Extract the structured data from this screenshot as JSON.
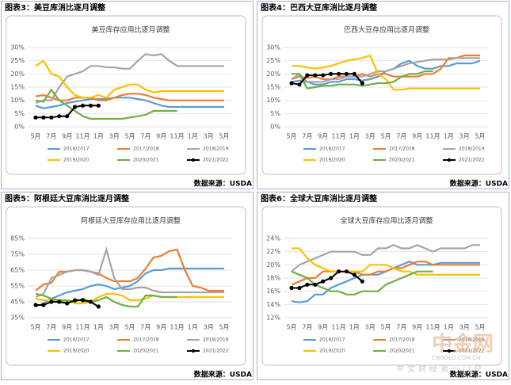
{
  "chart_data": [
    {
      "type": "line",
      "caption": "图表3：美豆库消比逐月调整",
      "title": "美豆库存应用比逐月调整",
      "source": "数据来源：USDA",
      "categories": [
        "5月",
        null,
        "7月",
        null,
        "9月",
        null,
        "11月",
        null,
        "1月",
        null,
        "3月",
        null,
        "5月",
        null,
        "7月",
        null,
        "9月",
        null,
        "11月",
        null,
        "1月",
        null,
        "3月",
        null,
        "5月"
      ],
      "ylim": [
        0,
        30
      ],
      "yticks": [
        {
          "value": 0,
          "label": "0%"
        },
        {
          "value": 5,
          "label": "5%"
        },
        {
          "value": 10,
          "label": "10%"
        },
        {
          "value": 15,
          "label": "15%"
        },
        {
          "value": 20,
          "label": "20%"
        },
        {
          "value": 25,
          "label": "25%"
        },
        {
          "value": 30,
          "label": "30%"
        }
      ],
      "grid": true,
      "series": [
        {
          "name": "2016/2017",
          "color": "#5b9bd5",
          "values": [
            8,
            7,
            7.5,
            8,
            9,
            9.5,
            10,
            10.5,
            10.5,
            10.5,
            11,
            11,
            11,
            10.5,
            10,
            9,
            8,
            7.5,
            7.5,
            7.5,
            7.5,
            7.5,
            7.5,
            7.5,
            7.5
          ]
        },
        {
          "name": "2017/2018",
          "color": "#ed7d31",
          "values": [
            11.5,
            12,
            11,
            10,
            10,
            11,
            11,
            11,
            10,
            10,
            11,
            12,
            12.5,
            12.5,
            12,
            11,
            10.5,
            10,
            10,
            10,
            10,
            10,
            10,
            10,
            10
          ]
        },
        {
          "name": "2018/2019",
          "color": "#a5a5a5",
          "values": [
            9,
            10,
            10,
            15,
            19,
            20,
            21,
            23,
            23,
            22.5,
            22.5,
            22,
            22,
            25,
            27.5,
            27,
            27.5,
            25,
            23,
            23,
            23,
            23,
            23,
            23,
            23
          ]
        },
        {
          "name": "2019/2020",
          "color": "#ffc000",
          "values": [
            23,
            25,
            20,
            19,
            15,
            12,
            11,
            11,
            12,
            11,
            14,
            15,
            16,
            16,
            14,
            13,
            13.5,
            13.5,
            13.5,
            13.5,
            13.5,
            13.5,
            13.5,
            13.5,
            13.5
          ]
        },
        {
          "name": "2020/2021",
          "color": "#70ad47",
          "values": [
            10,
            9.5,
            14,
            10,
            8,
            6,
            4,
            3,
            3,
            3,
            3,
            3,
            3.5,
            4,
            4.5,
            6,
            6,
            6,
            6,
            null,
            null,
            null,
            null,
            null,
            null
          ]
        },
        {
          "name": "2021/2022",
          "color": "#000000",
          "marker": true,
          "values": [
            3.5,
            3.5,
            3.5,
            4,
            4,
            7.5,
            8,
            8,
            8,
            null,
            null,
            null,
            null,
            null,
            null,
            null,
            null,
            null,
            null,
            null,
            null,
            null,
            null,
            null,
            null
          ]
        }
      ]
    },
    {
      "type": "line",
      "caption": "图表4：巴西大豆库消比逐月调整",
      "title": "巴西大豆存应用比逐月调整",
      "source": "数据来源：USDA",
      "categories": [
        "5月",
        null,
        "7月",
        null,
        "9月",
        null,
        "11月",
        null,
        "1月",
        null,
        "3月",
        null,
        "5月",
        null,
        "7月",
        null,
        "9月",
        null,
        "11月",
        null,
        "1月",
        null,
        "3月",
        null,
        "5月"
      ],
      "ylim": [
        0,
        30
      ],
      "yticks": [
        {
          "value": 0,
          "label": "0%"
        },
        {
          "value": 5,
          "label": "5%"
        },
        {
          "value": 10,
          "label": "10%"
        },
        {
          "value": 15,
          "label": "15%"
        },
        {
          "value": 20,
          "label": "20%"
        },
        {
          "value": 25,
          "label": "25%"
        },
        {
          "value": 30,
          "label": "30%"
        }
      ],
      "grid": true,
      "series": [
        {
          "name": "2016/2017",
          "color": "#5b9bd5",
          "values": [
            17,
            17.5,
            17,
            16,
            16,
            17,
            17,
            18,
            18,
            17.5,
            18,
            19,
            21,
            22,
            24,
            25,
            23,
            22,
            22,
            23,
            23,
            24,
            24,
            24,
            25
          ]
        },
        {
          "name": "2017/2018",
          "color": "#ed7d31",
          "values": [
            18,
            19,
            18.5,
            19,
            18,
            18,
            19,
            19,
            19,
            20,
            19,
            20,
            20,
            19,
            19,
            19,
            19,
            20,
            20,
            22,
            26,
            26,
            27,
            27,
            27
          ]
        },
        {
          "name": "2018/2019",
          "color": "#a5a5a5",
          "values": [
            18,
            20,
            17,
            17,
            17,
            18,
            18,
            19,
            19,
            19,
            20,
            21,
            21,
            22,
            23,
            24,
            24.5,
            25,
            25.5,
            25.5,
            25.5,
            26,
            26,
            26,
            26
          ]
        },
        {
          "name": "2019/2020",
          "color": "#ffc000",
          "values": [
            23,
            23,
            22.5,
            22,
            22.5,
            23,
            24,
            25,
            25.5,
            26,
            27,
            20,
            18,
            14,
            14,
            14.5,
            14.5,
            14.5,
            14.5,
            14.5,
            14.5,
            14.5,
            14.5,
            14.5,
            14.5
          ]
        },
        {
          "name": "2020/2021",
          "color": "#70ad47",
          "values": [
            20,
            20,
            14.5,
            15,
            15.5,
            15.5,
            16,
            16,
            16,
            15.5,
            16,
            16.5,
            16.5,
            17,
            19,
            20,
            20,
            21,
            21,
            null,
            null,
            null,
            null,
            null,
            null
          ]
        },
        {
          "name": "2021/2022",
          "color": "#000000",
          "marker": true,
          "values": [
            16.5,
            16,
            19.5,
            19.5,
            19.5,
            20,
            20,
            20,
            20,
            16.5,
            null,
            null,
            null,
            null,
            null,
            null,
            null,
            null,
            null,
            null,
            null,
            null,
            null,
            null,
            null
          ]
        }
      ]
    },
    {
      "type": "line",
      "caption": "图表5：阿根廷大豆库消比逐月调整",
      "title": "阿根廷大豆库存应用比逐月调整",
      "source": "数据来源：USDA",
      "categories": [
        "5月",
        null,
        "7月",
        null,
        "9月",
        null,
        "11月",
        null,
        "1月",
        null,
        "3月",
        null,
        "5月",
        null,
        "7月",
        null,
        "9月",
        null,
        "11月",
        null,
        "1月",
        null,
        "3月",
        null,
        "5月"
      ],
      "ylim": [
        35,
        85
      ],
      "yticks": [
        {
          "value": 35,
          "label": "35%"
        },
        {
          "value": 45,
          "label": "45%"
        },
        {
          "value": 55,
          "label": "55%"
        },
        {
          "value": 65,
          "label": "65%"
        },
        {
          "value": 75,
          "label": "75%"
        },
        {
          "value": 85,
          "label": "85%"
        }
      ],
      "grid": true,
      "series": [
        {
          "name": "2016/2017",
          "color": "#5b9bd5",
          "values": [
            42,
            44,
            47,
            49,
            51,
            52,
            53,
            55,
            56,
            55,
            53,
            54,
            55,
            58,
            63,
            65,
            65,
            66,
            66,
            66,
            66,
            66,
            66,
            66,
            66
          ]
        },
        {
          "name": "2017/2018",
          "color": "#ed7d31",
          "values": [
            52,
            56,
            57,
            64,
            64,
            65,
            65,
            64,
            63,
            60,
            58,
            58,
            58,
            60,
            66,
            73,
            74,
            77,
            78,
            65,
            55,
            54,
            52,
            52,
            52
          ]
        },
        {
          "name": "2018/2019",
          "color": "#a5a5a5",
          "values": [
            48,
            50,
            60,
            62,
            64,
            65,
            65,
            64,
            62,
            78,
            60,
            53,
            53,
            54,
            54,
            52,
            51,
            51,
            51,
            51,
            51,
            51,
            51,
            51,
            51
          ]
        },
        {
          "name": "2019/2020",
          "color": "#ffc000",
          "values": [
            47,
            46,
            46,
            45,
            46,
            44,
            44,
            45,
            48,
            50,
            50,
            49,
            46,
            46,
            47,
            49,
            48,
            48,
            48,
            48,
            48,
            48,
            48,
            48,
            48
          ]
        },
        {
          "name": "2020/2021",
          "color": "#70ad47",
          "values": [
            50,
            49,
            47,
            46,
            46,
            45,
            47,
            45,
            46,
            48,
            45,
            43,
            42,
            42,
            49,
            49,
            48,
            48,
            48,
            null,
            null,
            null,
            null,
            null,
            null
          ]
        },
        {
          "name": "2021/2022",
          "color": "#000000",
          "marker": true,
          "values": [
            43,
            43,
            45,
            45,
            44,
            46,
            46,
            45,
            42,
            null,
            null,
            null,
            null,
            null,
            null,
            null,
            null,
            null,
            null,
            null,
            null,
            null,
            null,
            null,
            null
          ]
        }
      ]
    },
    {
      "type": "line",
      "caption": "图表6：全球大豆库消比逐月调整",
      "title": "全球大豆库存应用比逐月调整",
      "source": "数据来源：USDA",
      "categories": [
        "5月",
        null,
        "7月",
        null,
        "9月",
        null,
        "11月",
        null,
        "1月",
        null,
        "3月",
        null,
        "5月",
        null,
        "7月",
        null,
        "9月",
        null,
        "11月",
        null,
        "1月",
        null,
        "3月",
        null,
        "5月"
      ],
      "ylim": [
        12,
        24
      ],
      "yticks": [
        {
          "value": 12,
          "label": "12%"
        },
        {
          "value": 14,
          "label": "14%"
        },
        {
          "value": 16,
          "label": "16%"
        },
        {
          "value": 18,
          "label": "18%"
        },
        {
          "value": 20,
          "label": "20%"
        },
        {
          "value": 22,
          "label": "22%"
        },
        {
          "value": 24,
          "label": "24%"
        }
      ],
      "grid": true,
      "series": [
        {
          "name": "2016/2017",
          "color": "#5b9bd5",
          "values": [
            14.5,
            14.3,
            14.5,
            15.5,
            15.5,
            16.5,
            17,
            17.5,
            18,
            18.5,
            18.5,
            18.5,
            19,
            19.5,
            20,
            20.5,
            20,
            20,
            20,
            20.3,
            20.3,
            20.3,
            20.3,
            20.3,
            20.3
          ]
        },
        {
          "name": "2017/2018",
          "color": "#ed7d31",
          "values": [
            17,
            17.5,
            18,
            18,
            19,
            19,
            19,
            19,
            19,
            18.5,
            18.5,
            19,
            19,
            19.5,
            19.5,
            20,
            20.5,
            20.5,
            20,
            20,
            20,
            20,
            20,
            20,
            20
          ]
        },
        {
          "name": "2018/2019",
          "color": "#a5a5a5",
          "values": [
            19,
            20,
            20.5,
            21,
            21.5,
            22,
            22,
            22,
            22,
            21.5,
            21.5,
            22.5,
            22.5,
            23,
            22.5,
            22.5,
            23,
            22.5,
            22,
            22.5,
            22.5,
            22.5,
            22.5,
            23,
            23
          ]
        },
        {
          "name": "2019/2020",
          "color": "#ffc000",
          "values": [
            22.5,
            22.5,
            21,
            20,
            19.5,
            19,
            19,
            19,
            19,
            19,
            20,
            20,
            20,
            19.5,
            19,
            19,
            18.5,
            18.5,
            18.5,
            18.5,
            18.5,
            18.5,
            18.5,
            18.5,
            18.5
          ]
        },
        {
          "name": "2020/2021",
          "color": "#70ad47",
          "values": [
            19,
            18.5,
            18,
            17,
            16.5,
            16,
            16,
            15.5,
            15.5,
            16,
            16,
            16,
            17,
            17.5,
            18,
            18.5,
            19,
            19,
            19,
            null,
            null,
            null,
            null,
            null,
            null
          ]
        },
        {
          "name": "2021/2022",
          "color": "#000000",
          "marker": true,
          "values": [
            16.5,
            16.5,
            17,
            17,
            17.5,
            18,
            19,
            19,
            18.5,
            17.5,
            null,
            null,
            null,
            null,
            null,
            null,
            null,
            null,
            null,
            null,
            null,
            null,
            null,
            null,
            null
          ]
        }
      ]
    }
  ],
  "watermark": {
    "logo": "中金网",
    "site": "CNGOLD.COM.CN",
    "slogan": "中文财经第一门户"
  }
}
